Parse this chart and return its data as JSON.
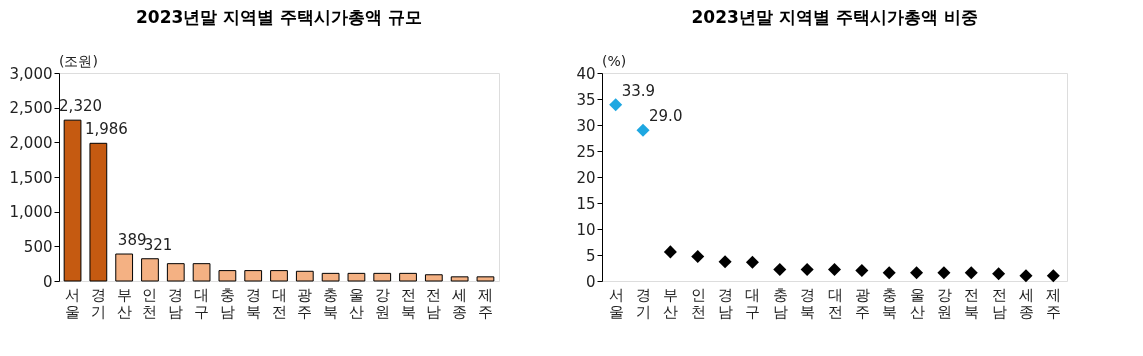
{
  "chart_data": [
    {
      "type": "bar",
      "title": "2023년말 지역별 주택시가총액 규모",
      "ylabel": "(조원)",
      "categories": [
        "서울",
        "경기",
        "부산",
        "인천",
        "경남",
        "대구",
        "충남",
        "경북",
        "대전",
        "광주",
        "충북",
        "울산",
        "강원",
        "전북",
        "전남",
        "세종",
        "제주"
      ],
      "values": [
        2320,
        1986,
        389,
        321,
        250,
        250,
        150,
        150,
        150,
        140,
        110,
        110,
        110,
        110,
        90,
        60,
        60
      ],
      "colors": [
        "#c55a11",
        "#c55a11",
        "#f4b183",
        "#f4b183",
        "#f4b183",
        "#f4b183",
        "#f4b183",
        "#f4b183",
        "#f4b183",
        "#f4b183",
        "#f4b183",
        "#f4b183",
        "#f4b183",
        "#f4b183",
        "#f4b183",
        "#f4b183",
        "#f4b183"
      ],
      "value_labels": [
        "2,320",
        "1,986",
        "389",
        "321",
        null,
        null,
        null,
        null,
        null,
        null,
        null,
        null,
        null,
        null,
        null,
        null,
        null
      ],
      "ylim": [
        0,
        3000
      ],
      "yticks": [
        {
          "value": 0,
          "label": "0"
        },
        {
          "value": 500,
          "label": "500"
        },
        {
          "value": 1000,
          "label": "1,000"
        },
        {
          "value": 1500,
          "label": "1,500"
        },
        {
          "value": 2000,
          "label": "2,000"
        },
        {
          "value": 2500,
          "label": "2,500"
        },
        {
          "value": 3000,
          "label": "3,000"
        }
      ],
      "grid": false
    },
    {
      "type": "scatter",
      "title": "2023년말 지역별 주택시가총액 비중",
      "ylabel": "(%)",
      "categories": [
        "서울",
        "경기",
        "부산",
        "인천",
        "경남",
        "대구",
        "충남",
        "경북",
        "대전",
        "광주",
        "충북",
        "울산",
        "강원",
        "전북",
        "전남",
        "세종",
        "제주"
      ],
      "values": [
        33.9,
        29.0,
        5.6,
        4.7,
        3.7,
        3.6,
        2.2,
        2.2,
        2.2,
        2.0,
        1.6,
        1.6,
        1.6,
        1.6,
        1.4,
        1.0,
        1.0
      ],
      "colors": [
        "#1ea7e1",
        "#1ea7e1",
        "#000000",
        "#000000",
        "#000000",
        "#000000",
        "#000000",
        "#000000",
        "#000000",
        "#000000",
        "#000000",
        "#000000",
        "#000000",
        "#000000",
        "#000000",
        "#000000",
        "#000000"
      ],
      "value_labels": [
        "33.9",
        "29.0",
        null,
        null,
        null,
        null,
        null,
        null,
        null,
        null,
        null,
        null,
        null,
        null,
        null,
        null,
        null
      ],
      "marker": "diamond",
      "ylim": [
        0,
        40
      ],
      "yticks": [
        0,
        5,
        10,
        15,
        20,
        25,
        30,
        35,
        40
      ],
      "grid": false
    }
  ]
}
